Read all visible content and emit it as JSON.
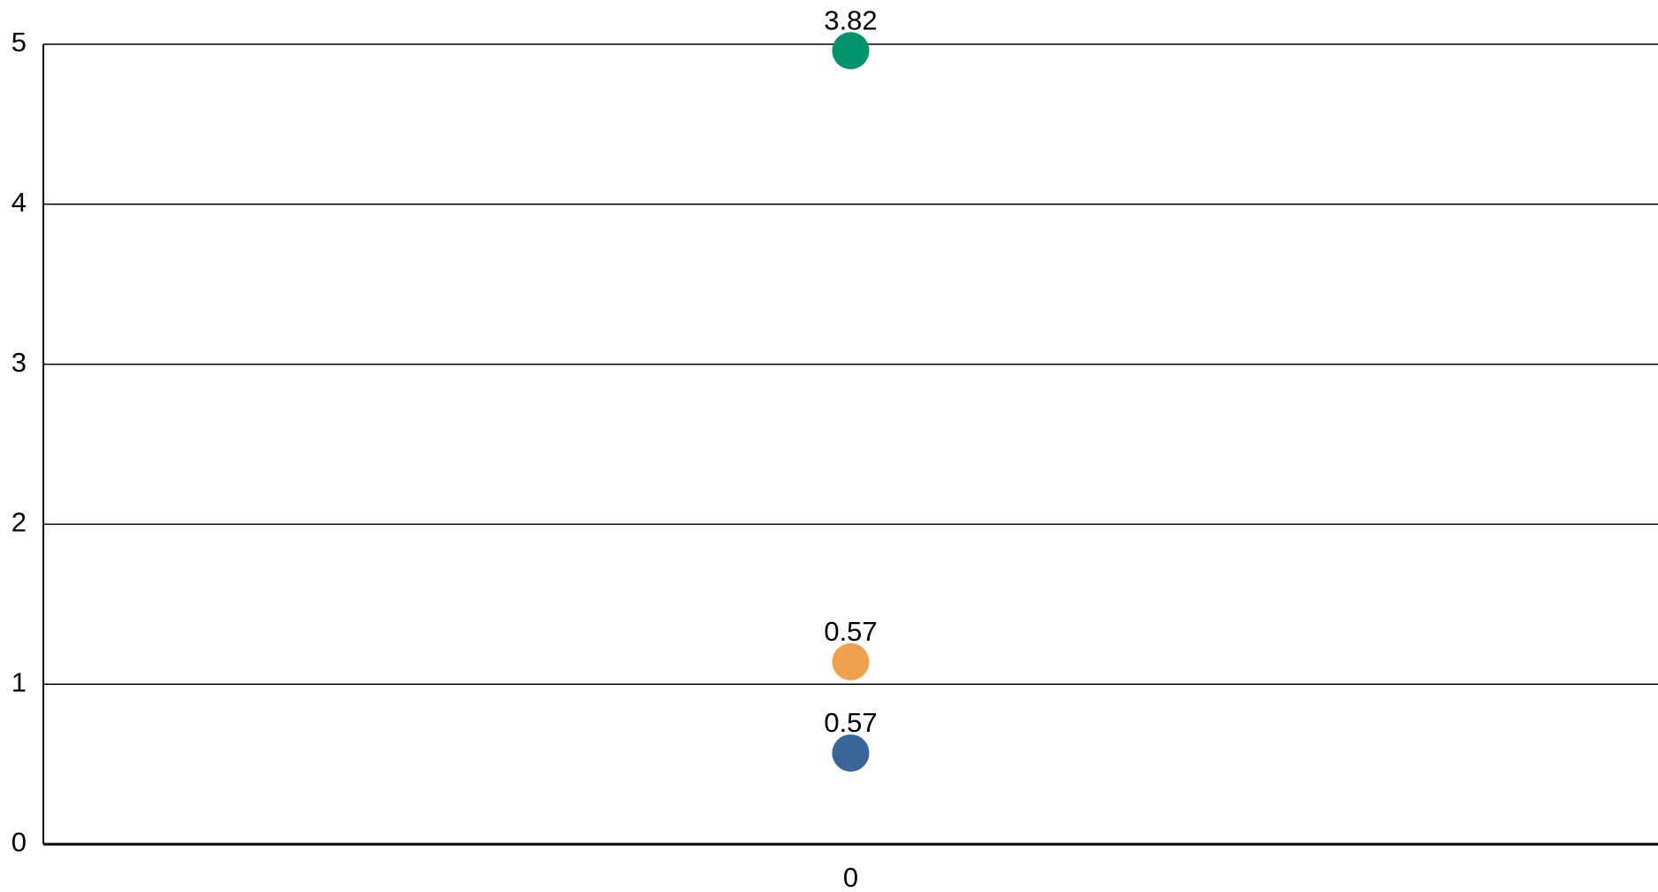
{
  "chart_data": {
    "type": "dot",
    "stacked": true,
    "categories": [
      "0"
    ],
    "series": [
      {
        "color": "#3b6699",
        "values": [
          0.57
        ]
      },
      {
        "color": "#f0a150",
        "values": [
          0.57
        ]
      },
      {
        "color": "#00936f",
        "values": [
          3.82
        ]
      }
    ],
    "ylim": [
      0,
      5
    ],
    "yticks": [
      0,
      1,
      2,
      3,
      4,
      5
    ],
    "grid": true
  }
}
